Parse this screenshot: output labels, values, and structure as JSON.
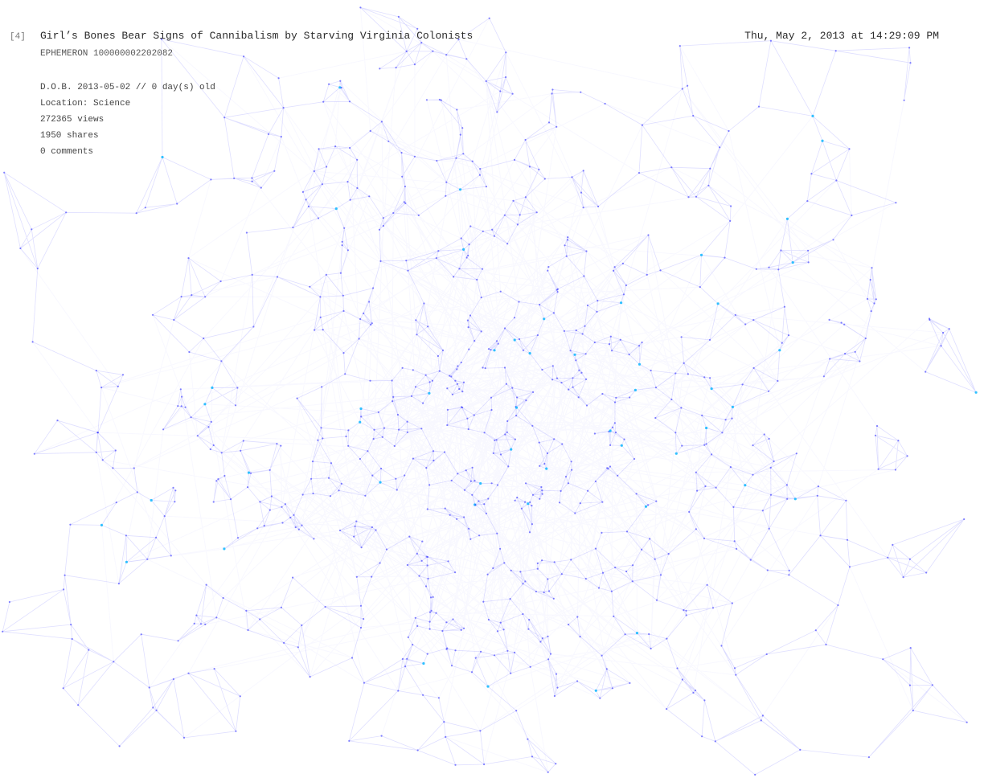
{
  "header": {
    "index": "[4]",
    "title": "Girl’s Bones Bear Signs of Cannibalism by Starving Virginia Colonists",
    "timestamp": "Thu, May 2, 2013 at 14:29:09 PM",
    "ephemeron": "EPHEMERON 100000002202082"
  },
  "details": {
    "dob": "D.O.B. 2013-05-02  //  0 day(s) old",
    "location": "Location: Science",
    "views": "272365 views",
    "shares": "1950 shares",
    "comments": "0 comments"
  },
  "visual": {
    "edge_color": "#3a3aff",
    "node_color": "#2020ff",
    "highlight_color": "#00b4ff",
    "background": "#ffffff"
  }
}
